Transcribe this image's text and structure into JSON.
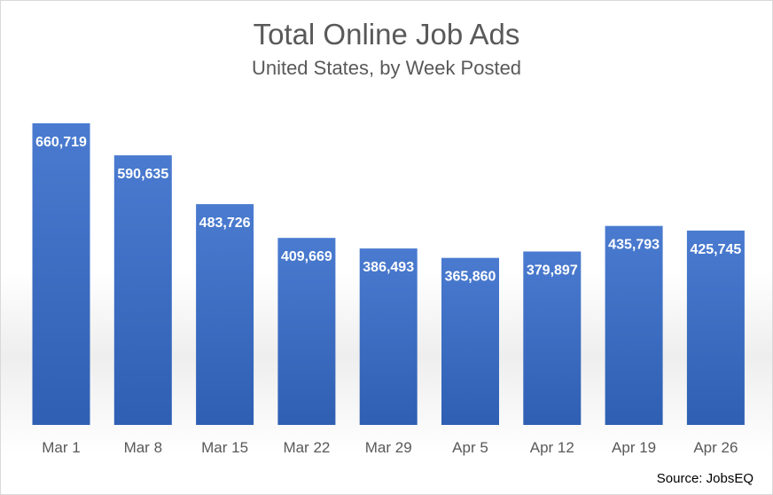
{
  "chart_data": {
    "type": "bar",
    "title": "Total Online Job Ads",
    "subtitle": "United States, by Week Posted",
    "categories": [
      "Mar 1",
      "Mar 8",
      "Mar 15",
      "Mar 22",
      "Mar 29",
      "Apr 5",
      "Apr 12",
      "Apr 19",
      "Apr 26"
    ],
    "values": [
      660719,
      590635,
      483726,
      409669,
      386493,
      365860,
      379897,
      435793,
      425745
    ],
    "data_labels": [
      "660,719",
      "590,635",
      "483,726",
      "409,669",
      "386,493",
      "365,860",
      "379,897",
      "435,793",
      "425,745"
    ],
    "ylim": [
      0,
      700000
    ],
    "grid": false,
    "legend": "none",
    "bar_color": "#4472c4",
    "source": "Source: JobsEQ"
  }
}
